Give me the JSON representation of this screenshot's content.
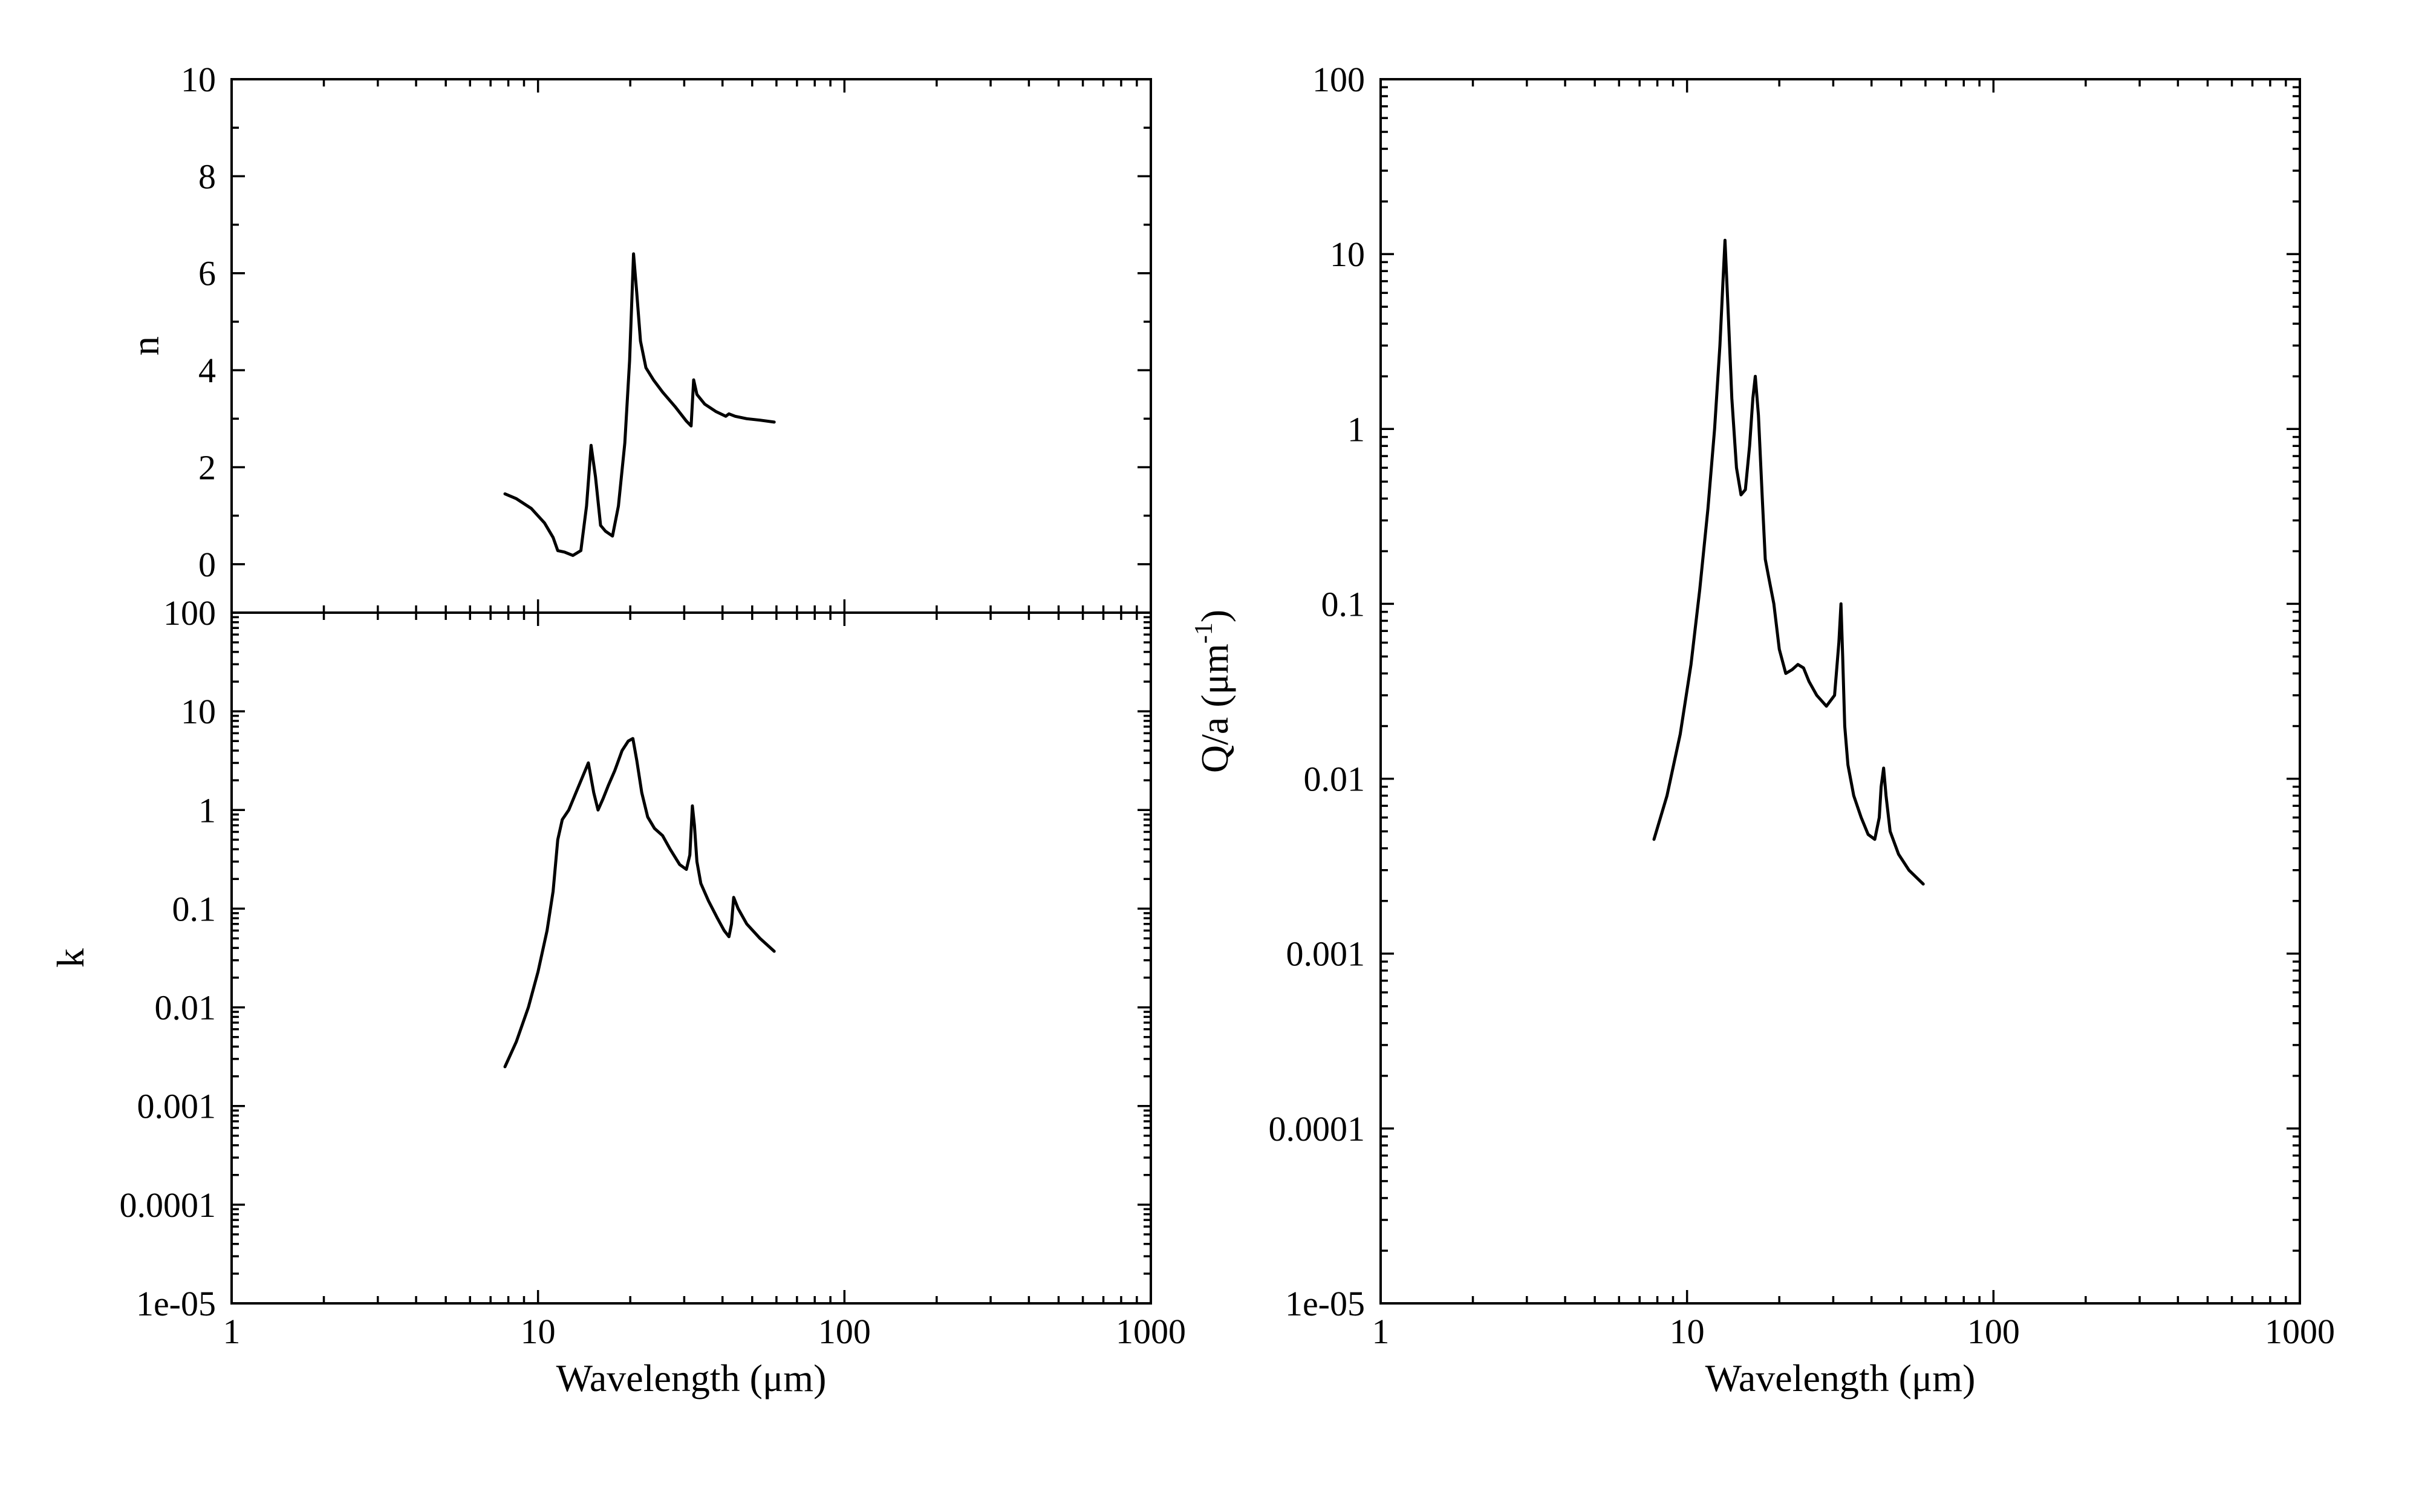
{
  "chart_data": [
    {
      "id": "n",
      "type": "line",
      "xscale": "log",
      "yscale": "linear",
      "xlim": [
        1,
        1000
      ],
      "ylim": [
        -1,
        10
      ],
      "ylabel": "n",
      "xlabel": "",
      "yticks": [
        0,
        2,
        4,
        6,
        8,
        10
      ],
      "ytick_labels": [
        "0",
        "2",
        "4",
        "6",
        "8",
        "10"
      ],
      "series": [
        {
          "x": [
            7.8,
            8.5,
            9.5,
            10.5,
            11.2,
            11.6,
            12.2,
            13.0,
            13.8,
            14.4,
            14.9,
            15.4,
            16.0,
            16.6,
            17.5,
            18.3,
            19.2,
            19.9,
            20.5,
            21.0,
            21.6,
            22.5,
            23.8,
            25.5,
            28.0,
            30.5,
            31.6,
            32.2,
            33.0,
            35.0,
            38.0,
            41.0,
            42.0,
            44.0,
            48.0,
            53.0,
            59.0
          ],
          "y": [
            1.45,
            1.35,
            1.15,
            0.85,
            0.55,
            0.28,
            0.25,
            0.18,
            0.28,
            1.2,
            2.45,
            1.8,
            0.8,
            0.68,
            0.58,
            1.2,
            2.5,
            4.2,
            6.4,
            5.6,
            4.6,
            4.05,
            3.8,
            3.55,
            3.25,
            2.95,
            2.85,
            3.8,
            3.5,
            3.3,
            3.15,
            3.05,
            3.1,
            3.05,
            3.0,
            2.97,
            2.93
          ]
        }
      ]
    },
    {
      "id": "k",
      "type": "line",
      "xscale": "log",
      "yscale": "log",
      "xlim": [
        1,
        1000
      ],
      "ylim": [
        1e-05,
        100
      ],
      "xlabel": "Wavelength (μm)",
      "ylabel": "k",
      "xticks": [
        1,
        10,
        100,
        1000
      ],
      "xtick_labels": [
        "1",
        "10",
        "100",
        "1000"
      ],
      "yticks": [
        1e-05,
        0.0001,
        0.001,
        0.01,
        0.1,
        1,
        10,
        100
      ],
      "ytick_labels": [
        "1e-05",
        "0.0001",
        "0.001",
        "0.01",
        "0.1",
        "1",
        "10",
        "100"
      ],
      "series": [
        {
          "x": [
            7.8,
            8.5,
            9.3,
            10.0,
            10.7,
            11.2,
            11.6,
            12.0,
            12.6,
            13.3,
            14.0,
            14.6,
            15.2,
            15.7,
            16.3,
            17.0,
            17.8,
            18.8,
            19.7,
            20.4,
            21.0,
            21.8,
            22.8,
            24.0,
            25.5,
            27.0,
            29.0,
            30.5,
            31.3,
            31.9,
            32.4,
            33.0,
            34.0,
            36.0,
            38.5,
            40.5,
            42.0,
            42.8,
            43.5,
            45.0,
            48.0,
            53.0,
            59.0
          ],
          "y": [
            0.0025,
            0.0045,
            0.01,
            0.023,
            0.06,
            0.15,
            0.5,
            0.8,
            1.0,
            1.5,
            2.2,
            3.0,
            1.5,
            1.0,
            1.3,
            1.8,
            2.5,
            4.0,
            5.0,
            5.3,
            3.2,
            1.5,
            0.85,
            0.65,
            0.55,
            0.4,
            0.28,
            0.25,
            0.35,
            1.1,
            0.7,
            0.3,
            0.18,
            0.12,
            0.08,
            0.06,
            0.052,
            0.07,
            0.13,
            0.1,
            0.07,
            0.05,
            0.037
          ]
        }
      ]
    },
    {
      "id": "qa",
      "type": "line",
      "xscale": "log",
      "yscale": "log",
      "xlim": [
        1,
        1000
      ],
      "ylim": [
        1e-05,
        100
      ],
      "xlabel": "Wavelength (μm)",
      "ylabel": "Q/a (μm",
      "ylabel_superscript": "-1",
      "ylabel_suffix": ")",
      "xticks": [
        1,
        10,
        100,
        1000
      ],
      "xtick_labels": [
        "1",
        "10",
        "100",
        "1000"
      ],
      "yticks": [
        1e-05,
        0.0001,
        0.001,
        0.01,
        0.1,
        1,
        10,
        100
      ],
      "ytick_labels": [
        "1e-05",
        "0.0001",
        "0.001",
        "0.01",
        "0.1",
        "1",
        "10",
        "100"
      ],
      "series": [
        {
          "x": [
            7.8,
            8.6,
            9.5,
            10.3,
            11.0,
            11.7,
            12.3,
            12.8,
            13.1,
            13.3,
            13.6,
            14.0,
            14.5,
            15.0,
            15.5,
            16.0,
            16.4,
            16.7,
            17.1,
            17.6,
            18.0,
            18.5,
            19.2,
            20.0,
            21.0,
            22.0,
            23.0,
            24.0,
            25.0,
            26.5,
            28.5,
            30.3,
            31.3,
            31.8,
            32.2,
            32.7,
            33.5,
            35.0,
            37.0,
            39.0,
            41.0,
            42.4,
            43.0,
            43.8,
            44.6,
            46.0,
            49.0,
            53.0,
            59.0
          ],
          "y": [
            0.0045,
            0.008,
            0.018,
            0.045,
            0.12,
            0.35,
            1.0,
            3.0,
            7.0,
            12.0,
            5.0,
            1.5,
            0.6,
            0.42,
            0.45,
            0.8,
            1.5,
            2.0,
            1.2,
            0.4,
            0.18,
            0.14,
            0.1,
            0.055,
            0.04,
            0.042,
            0.045,
            0.043,
            0.036,
            0.03,
            0.026,
            0.03,
            0.06,
            0.1,
            0.05,
            0.02,
            0.012,
            0.008,
            0.006,
            0.0048,
            0.0045,
            0.006,
            0.009,
            0.0115,
            0.008,
            0.005,
            0.0037,
            0.003,
            0.0025
          ]
        }
      ]
    }
  ]
}
